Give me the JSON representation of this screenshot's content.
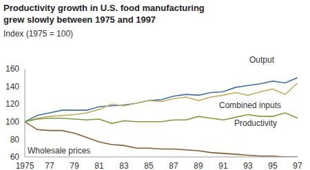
{
  "chart_data": {
    "type": "line",
    "title": "Productivity growth in U.S. food manufacturing\ngrew slowly between 1975 and 1997",
    "y_label": "Index (1975 = 100)",
    "x": [
      1975,
      1976,
      1977,
      1978,
      1979,
      1980,
      1981,
      1982,
      1983,
      1984,
      1985,
      1986,
      1987,
      1988,
      1989,
      1990,
      1991,
      1992,
      1993,
      1994,
      1995,
      1996,
      1997
    ],
    "series": [
      {
        "name": "Output",
        "color": "#3f6fa8",
        "values": [
          100,
          107,
          110,
          113,
          113,
          113,
          117,
          118,
          119,
          121,
          124,
          125,
          129,
          131,
          130,
          133,
          134,
          139,
          141,
          143,
          146,
          144,
          150
        ]
      },
      {
        "name": "Combined inputs",
        "color": "#bfae62",
        "values": [
          100,
          104,
          106,
          107,
          108,
          110,
          114,
          120,
          118,
          121,
          124,
          123,
          126,
          128,
          124,
          128,
          130,
          133,
          130,
          134,
          137,
          131,
          144
        ]
      },
      {
        "name": "Productivity",
        "color": "#7a9e3e",
        "values": [
          100,
          103,
          104,
          104,
          103,
          102,
          103,
          98,
          101,
          100,
          100,
          100,
          102,
          102,
          106,
          104,
          102,
          105,
          108,
          106,
          106,
          110,
          104
        ]
      },
      {
        "name": "Wholesale prices",
        "color": "#8a5a2e",
        "values": [
          100,
          91,
          90,
          90,
          87,
          82,
          77,
          74,
          73,
          70,
          70,
          69,
          69,
          68,
          67,
          65,
          64,
          63,
          62,
          61,
          61,
          60,
          60
        ]
      }
    ],
    "xlim": [
      1975,
      1997
    ],
    "xticks": [
      1975,
      {
        "value": 1977,
        "label": "77"
      },
      {
        "value": 1979,
        "label": "79"
      },
      {
        "value": 1981,
        "label": "81"
      },
      {
        "value": 1983,
        "label": "83"
      },
      {
        "value": 1985,
        "label": "85"
      },
      {
        "value": 1987,
        "label": "87"
      },
      {
        "value": 1989,
        "label": "89"
      },
      {
        "value": 1991,
        "label": "91"
      },
      {
        "value": 1993,
        "label": "93"
      },
      {
        "value": 1995,
        "label": "95"
      },
      {
        "value": 1997,
        "label": "97"
      }
    ],
    "ylim": [
      60,
      160
    ],
    "yticks": [
      60,
      80,
      100,
      120,
      140,
      160
    ],
    "grid": false,
    "legend": false
  }
}
